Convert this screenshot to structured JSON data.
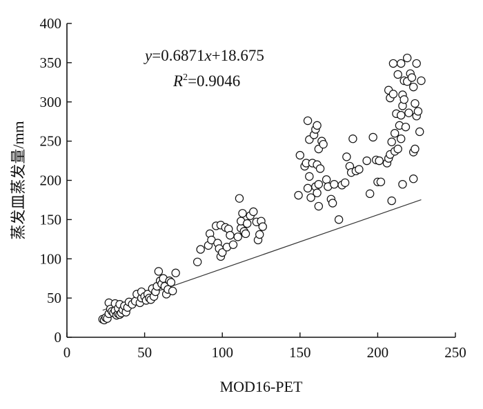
{
  "chart_data": {
    "type": "scatter",
    "title": "",
    "xlabel": "MOD16-PET",
    "ylabel": "蒸发皿蒸发量/mm",
    "xlim": [
      0,
      250
    ],
    "ylim": [
      0,
      400
    ],
    "xticks": [
      "0",
      "50",
      "100",
      "150",
      "200",
      "250"
    ],
    "yticks": [
      "0",
      "50",
      "100",
      "150",
      "200",
      "250",
      "300",
      "350",
      "400"
    ],
    "grid": false,
    "legend": "none",
    "annotations": {
      "equation": {
        "y_var": "y",
        "eq_mid": "=0.6871",
        "x_var": "x",
        "eq_tail": "+18.675"
      },
      "r2": {
        "r": "R",
        "sup": "2",
        "value": "=0.9046"
      }
    },
    "trendline": {
      "slope": 0.6871,
      "intercept": 18.675,
      "x_range": [
        23,
        228
      ]
    },
    "marker_style": {
      "shape": "circle",
      "fill": "#ffffff",
      "stroke": "#111111"
    },
    "series": [
      {
        "points": [
          [
            23,
            23
          ],
          [
            24,
            22
          ],
          [
            25,
            25
          ],
          [
            26,
            24
          ],
          [
            27,
            30
          ],
          [
            27,
            44
          ],
          [
            28,
            36
          ],
          [
            29,
            33
          ],
          [
            30,
            31
          ],
          [
            31,
            34
          ],
          [
            31,
            43
          ],
          [
            32,
            28
          ],
          [
            33,
            30
          ],
          [
            33,
            37
          ],
          [
            34,
            29
          ],
          [
            34,
            42
          ],
          [
            35,
            31
          ],
          [
            36,
            35
          ],
          [
            37,
            40
          ],
          [
            38,
            32
          ],
          [
            39,
            38
          ],
          [
            40,
            45
          ],
          [
            42,
            42
          ],
          [
            44,
            46
          ],
          [
            45,
            55
          ],
          [
            47,
            44
          ],
          [
            48,
            50
          ],
          [
            48,
            58
          ],
          [
            50,
            52
          ],
          [
            51,
            47
          ],
          [
            52,
            55
          ],
          [
            53,
            50
          ],
          [
            54,
            48
          ],
          [
            55,
            62
          ],
          [
            56,
            52
          ],
          [
            57,
            58
          ],
          [
            58,
            65
          ],
          [
            59,
            84
          ],
          [
            60,
            72
          ],
          [
            61,
            68
          ],
          [
            62,
            75
          ],
          [
            63,
            65
          ],
          [
            64,
            55
          ],
          [
            65,
            61
          ],
          [
            66,
            72
          ],
          [
            67,
            70
          ],
          [
            68,
            59
          ],
          [
            70,
            82
          ],
          [
            84,
            96
          ],
          [
            86,
            112
          ],
          [
            91,
            117
          ],
          [
            92,
            132
          ],
          [
            93,
            124
          ],
          [
            96,
            142
          ],
          [
            97,
            120
          ],
          [
            98,
            113
          ],
          [
            99,
            103
          ],
          [
            99,
            143
          ],
          [
            100,
            108
          ],
          [
            102,
            140
          ],
          [
            103,
            115
          ],
          [
            104,
            138
          ],
          [
            105,
            130
          ],
          [
            107,
            118
          ],
          [
            110,
            128
          ],
          [
            111,
            177
          ],
          [
            112,
            139
          ],
          [
            112,
            148
          ],
          [
            113,
            158
          ],
          [
            114,
            135
          ],
          [
            115,
            132
          ],
          [
            116,
            145
          ],
          [
            118,
            155
          ],
          [
            120,
            160
          ],
          [
            122,
            147
          ],
          [
            123,
            124
          ],
          [
            124,
            131
          ],
          [
            125,
            148
          ],
          [
            126,
            141
          ],
          [
            149,
            181
          ],
          [
            150,
            232
          ],
          [
            153,
            218
          ],
          [
            154,
            222
          ],
          [
            155,
            190
          ],
          [
            155,
            276
          ],
          [
            156,
            205
          ],
          [
            156,
            252
          ],
          [
            157,
            178
          ],
          [
            158,
            222
          ],
          [
            159,
            258
          ],
          [
            160,
            192
          ],
          [
            160,
            265
          ],
          [
            161,
            270
          ],
          [
            161,
            184
          ],
          [
            161,
            220
          ],
          [
            162,
            195
          ],
          [
            162,
            167
          ],
          [
            162,
            240
          ],
          [
            163,
            215
          ],
          [
            164,
            250
          ],
          [
            165,
            246
          ],
          [
            167,
            201
          ],
          [
            168,
            192
          ],
          [
            170,
            176
          ],
          [
            171,
            171
          ],
          [
            172,
            195
          ],
          [
            175,
            150
          ],
          [
            177,
            194
          ],
          [
            179,
            197
          ],
          [
            180,
            230
          ],
          [
            182,
            218
          ],
          [
            183,
            210
          ],
          [
            184,
            253
          ],
          [
            186,
            212
          ],
          [
            188,
            214
          ],
          [
            193,
            225
          ],
          [
            195,
            183
          ],
          [
            197,
            255
          ],
          [
            199,
            226
          ],
          [
            200,
            198
          ],
          [
            201,
            225
          ],
          [
            202,
            198
          ],
          [
            206,
            222
          ],
          [
            207,
            228
          ],
          [
            207,
            315
          ],
          [
            208,
            233
          ],
          [
            208,
            305
          ],
          [
            209,
            174
          ],
          [
            209,
            249
          ],
          [
            210,
            310
          ],
          [
            210,
            349
          ],
          [
            211,
            260
          ],
          [
            211,
            237
          ],
          [
            212,
            285
          ],
          [
            213,
            240
          ],
          [
            213,
            335
          ],
          [
            214,
            270
          ],
          [
            215,
            253
          ],
          [
            215,
            283
          ],
          [
            215,
            349
          ],
          [
            216,
            195
          ],
          [
            216,
            295
          ],
          [
            216,
            309
          ],
          [
            217,
            303
          ],
          [
            217,
            327
          ],
          [
            218,
            268
          ],
          [
            219,
            326
          ],
          [
            219,
            356
          ],
          [
            220,
            286
          ],
          [
            221,
            336
          ],
          [
            222,
            331
          ],
          [
            223,
            202
          ],
          [
            223,
            236
          ],
          [
            223,
            319
          ],
          [
            224,
            240
          ],
          [
            224,
            298
          ],
          [
            225,
            282
          ],
          [
            225,
            349
          ],
          [
            226,
            288
          ],
          [
            227,
            262
          ],
          [
            228,
            327
          ]
        ]
      }
    ]
  }
}
